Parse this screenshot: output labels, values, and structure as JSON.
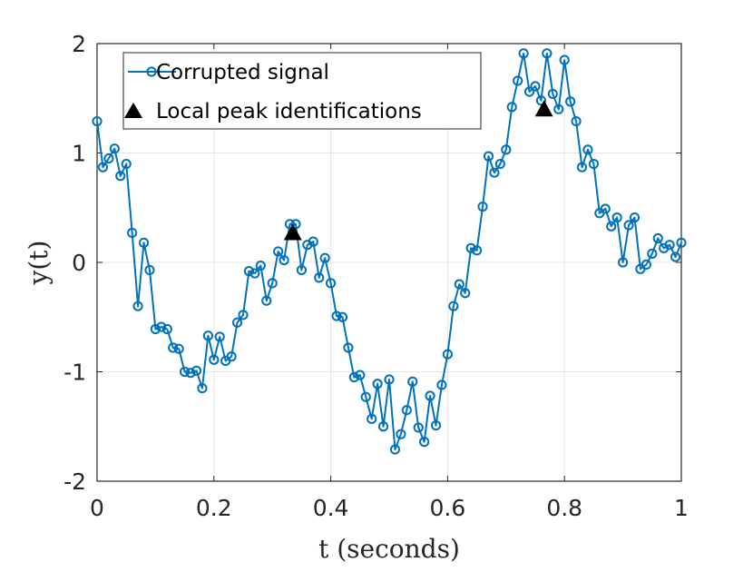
{
  "chart_data": {
    "type": "line",
    "xlabel": "t (seconds)",
    "ylabel": "y(t)",
    "xlim": [
      0,
      1
    ],
    "ylim": [
      -2,
      2
    ],
    "xticks": [
      0,
      0.2,
      0.4,
      0.6,
      0.8,
      1
    ],
    "xtick_labels": [
      "0",
      "0.2",
      "0.4",
      "0.6",
      "0.8",
      "1"
    ],
    "yticks": [
      -2,
      -1,
      0,
      1,
      2
    ],
    "ytick_labels": [
      "-2",
      "-1",
      "0",
      "1",
      "2"
    ],
    "grid": true,
    "legend_position": "top-left",
    "colors": {
      "signal": "#0072BD",
      "peaks": "#000000"
    },
    "series": [
      {
        "name": "Corrupted signal",
        "marker": "circle",
        "x": [
          0,
          0.01,
          0.02,
          0.03,
          0.04,
          0.05,
          0.06,
          0.07,
          0.08,
          0.09,
          0.1,
          0.11,
          0.12,
          0.13,
          0.14,
          0.15,
          0.16,
          0.17,
          0.18,
          0.19,
          0.2,
          0.21,
          0.22,
          0.23,
          0.24,
          0.25,
          0.26,
          0.27,
          0.28,
          0.29,
          0.3,
          0.31,
          0.32,
          0.33,
          0.34,
          0.35,
          0.36,
          0.37,
          0.38,
          0.39,
          0.4,
          0.41,
          0.42,
          0.43,
          0.44,
          0.45,
          0.46,
          0.47,
          0.48,
          0.49,
          0.5,
          0.51,
          0.52,
          0.53,
          0.54,
          0.55,
          0.56,
          0.57,
          0.58,
          0.59,
          0.6,
          0.61,
          0.62,
          0.63,
          0.64,
          0.65,
          0.66,
          0.67,
          0.68,
          0.69,
          0.7,
          0.71,
          0.72,
          0.73,
          0.74,
          0.75,
          0.76,
          0.77,
          0.78,
          0.79,
          0.8,
          0.81,
          0.82,
          0.83,
          0.84,
          0.85,
          0.86,
          0.87,
          0.88,
          0.89,
          0.9,
          0.91,
          0.92,
          0.93,
          0.94,
          0.95,
          0.96,
          0.97,
          0.98,
          0.99,
          1.0
        ],
        "y": [
          1.29,
          0.87,
          0.95,
          1.04,
          0.79,
          0.9,
          0.27,
          -0.4,
          0.18,
          -0.07,
          -0.61,
          -0.59,
          -0.61,
          -0.78,
          -0.79,
          -1.0,
          -1.01,
          -0.99,
          -1.15,
          -0.67,
          -0.89,
          -0.68,
          -0.9,
          -0.86,
          -0.55,
          -0.48,
          -0.08,
          -0.1,
          -0.03,
          -0.35,
          -0.19,
          0.1,
          0.02,
          0.35,
          0.35,
          -0.07,
          0.16,
          0.19,
          -0.14,
          0.04,
          -0.19,
          -0.49,
          -0.5,
          -0.78,
          -1.05,
          -1.03,
          -1.23,
          -1.43,
          -1.11,
          -1.5,
          -1.07,
          -1.71,
          -1.57,
          -1.35,
          -1.09,
          -1.51,
          -1.64,
          -1.22,
          -1.49,
          -1.12,
          -0.84,
          -0.4,
          -0.2,
          -0.28,
          0.13,
          0.11,
          0.51,
          0.97,
          0.82,
          0.9,
          1.03,
          1.42,
          1.66,
          1.91,
          1.56,
          1.61,
          1.48,
          1.91,
          1.54,
          1.4,
          1.85,
          1.47,
          1.29,
          0.87,
          1.03,
          0.9,
          0.45,
          0.49,
          0.33,
          0.41,
          0.0,
          0.34,
          0.41,
          -0.06,
          -0.02,
          0.08,
          0.22,
          0.13,
          0.16,
          0.05,
          0.18
        ]
      },
      {
        "name": "Local peak identifications",
        "marker": "triangle",
        "x": [
          0.335,
          0.765
        ],
        "y": [
          0.27,
          1.4
        ]
      }
    ]
  }
}
